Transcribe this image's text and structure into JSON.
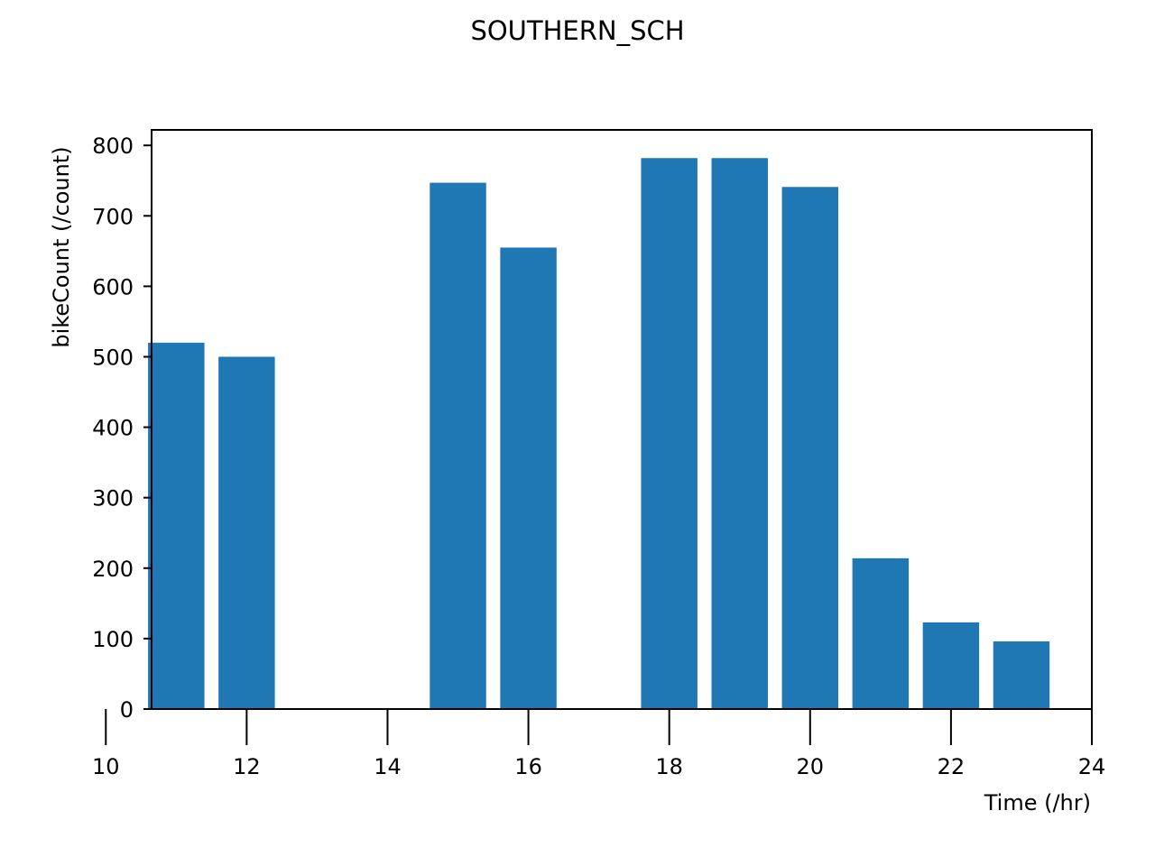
{
  "chart_data": {
    "type": "bar",
    "title": "SOUTHERN_SCH",
    "xlabel": "Time (/hr)",
    "ylabel": "bikeCount (/count)",
    "x": [
      11,
      12,
      15,
      16,
      18,
      19,
      20,
      21,
      22,
      23
    ],
    "values": [
      520,
      500,
      747,
      655,
      782,
      782,
      741,
      214,
      123,
      96
    ],
    "bar_width": 0.8,
    "xlim": [
      10,
      24
    ],
    "ylim": [
      0,
      822
    ],
    "xticks": [
      10,
      12,
      14,
      16,
      18,
      20,
      22,
      24
    ],
    "yticks": [
      0,
      100,
      200,
      300,
      400,
      500,
      600,
      700,
      800
    ],
    "bar_color": "#1f77b4",
    "grid": false,
    "legend": false
  }
}
